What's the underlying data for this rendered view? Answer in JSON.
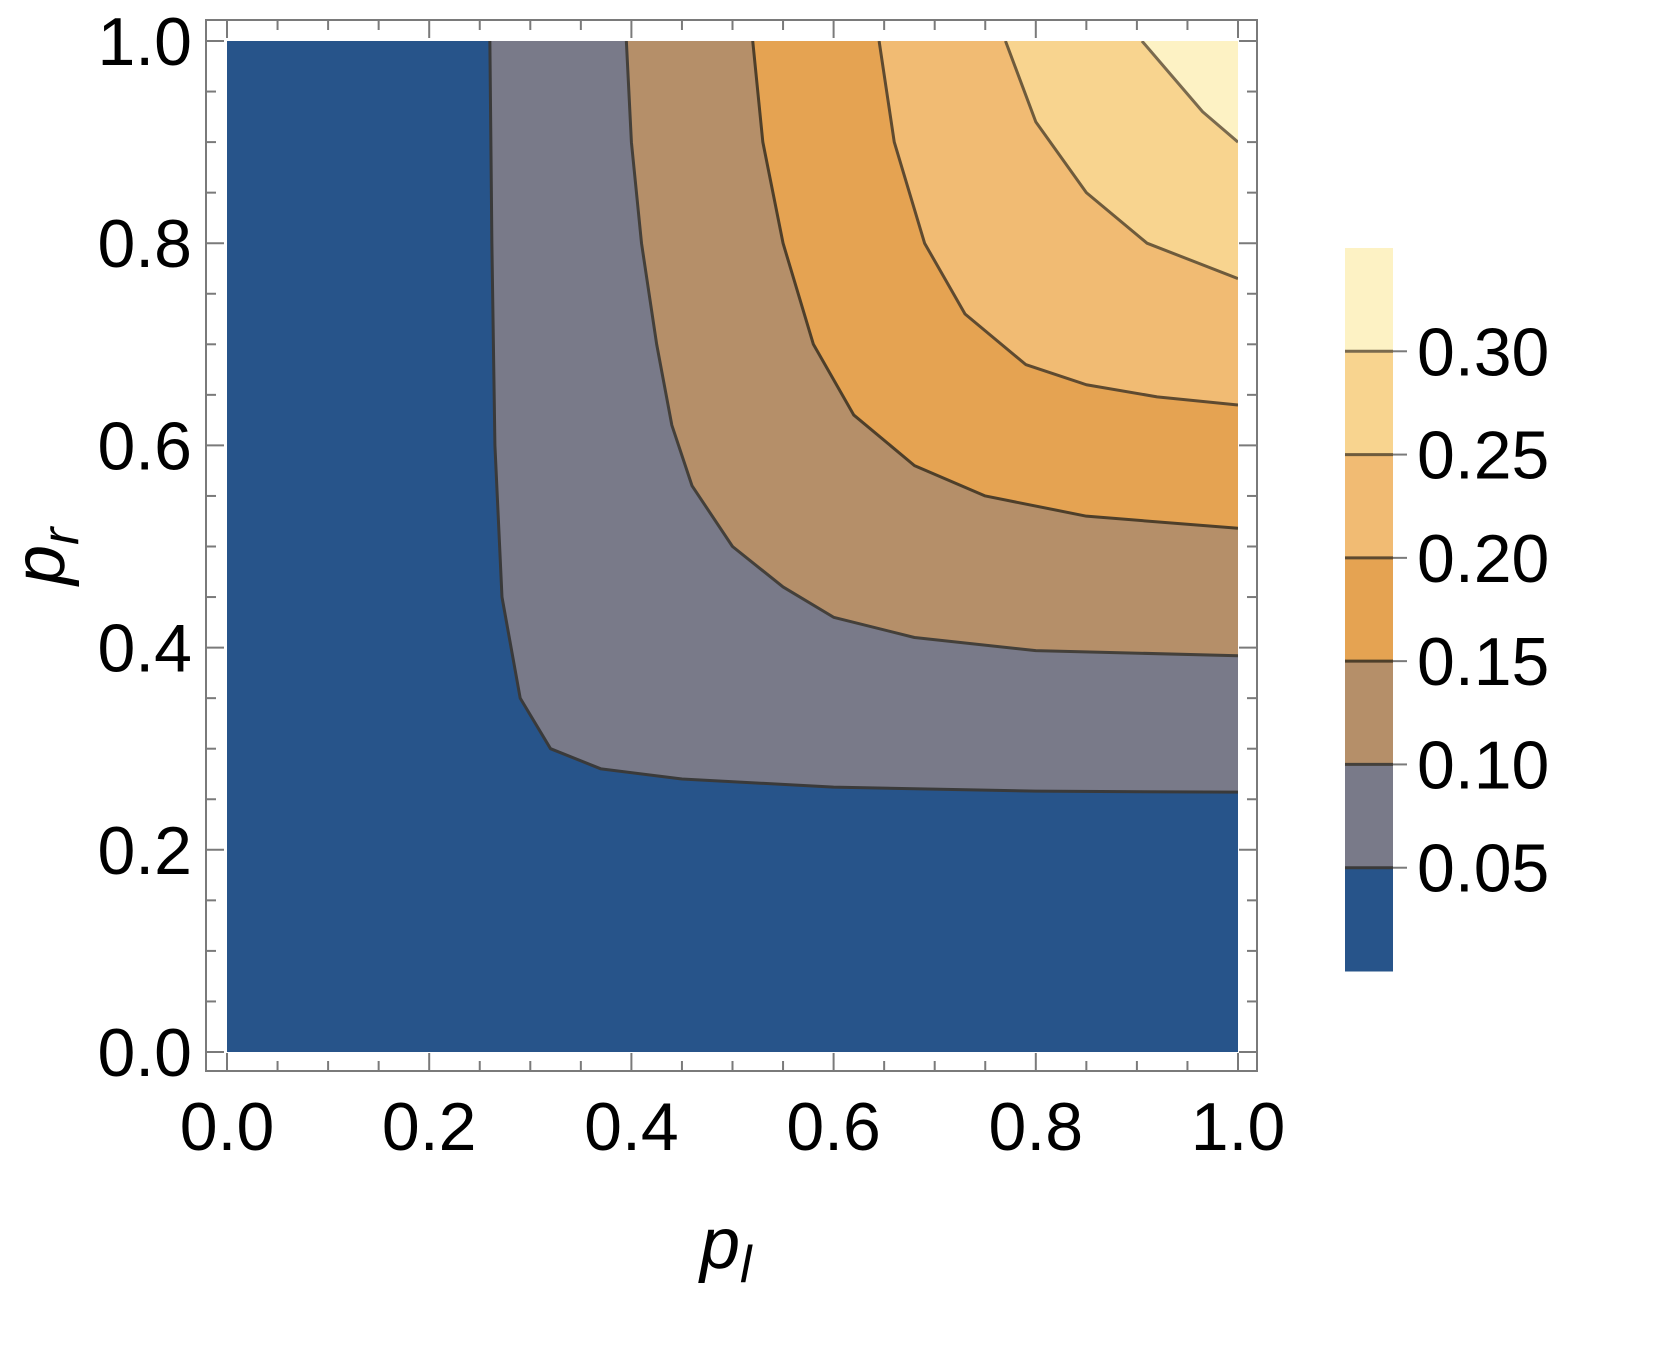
{
  "chart_data": {
    "type": "contour",
    "xlabel": {
      "base": "p",
      "sub": "l"
    },
    "ylabel": {
      "base": "p",
      "sub": "r"
    },
    "xlim": [
      0,
      1
    ],
    "ylim": [
      0,
      1
    ],
    "xticks": [
      "0.0",
      "0.2",
      "0.4",
      "0.6",
      "0.8",
      "1.0"
    ],
    "yticks": [
      "0.0",
      "0.2",
      "0.4",
      "0.6",
      "0.8",
      "1.0"
    ],
    "contour_levels": [
      {
        "level": 0.05,
        "label": "0.05",
        "line_color": "#3a3a3a"
      },
      {
        "level": 0.1,
        "label": "0.10",
        "line_color": "#44403a"
      },
      {
        "level": 0.15,
        "label": "0.15",
        "line_color": "#4e3f2a"
      },
      {
        "level": 0.2,
        "label": "0.20",
        "line_color": "#5e4a30"
      },
      {
        "level": 0.25,
        "label": "0.25",
        "line_color": "#6e5b3c"
      },
      {
        "level": 0.3,
        "label": "0.30",
        "line_color": "#7a6a4e"
      }
    ],
    "band_colors": [
      "#27548a",
      "#797a89",
      "#b58f69",
      "#e5a352",
      "#f1bb73",
      "#f8d48f",
      "#fdf2c4"
    ],
    "contour_lines": [
      {
        "level": 0.05,
        "points": [
          [
            0.26,
            1.0
          ],
          [
            0.262,
            0.8
          ],
          [
            0.265,
            0.6
          ],
          [
            0.272,
            0.45
          ],
          [
            0.29,
            0.35
          ],
          [
            0.32,
            0.3
          ],
          [
            0.37,
            0.28
          ],
          [
            0.45,
            0.27
          ],
          [
            0.6,
            0.262
          ],
          [
            0.8,
            0.258
          ],
          [
            1.0,
            0.257
          ]
        ]
      },
      {
        "level": 0.1,
        "points": [
          [
            0.395,
            1.0
          ],
          [
            0.4,
            0.9
          ],
          [
            0.41,
            0.8
          ],
          [
            0.425,
            0.7
          ],
          [
            0.44,
            0.62
          ],
          [
            0.46,
            0.56
          ],
          [
            0.5,
            0.5
          ],
          [
            0.55,
            0.46
          ],
          [
            0.6,
            0.43
          ],
          [
            0.68,
            0.41
          ],
          [
            0.8,
            0.397
          ],
          [
            1.0,
            0.392
          ]
        ]
      },
      {
        "level": 0.15,
        "points": [
          [
            0.52,
            1.0
          ],
          [
            0.53,
            0.9
          ],
          [
            0.55,
            0.8
          ],
          [
            0.58,
            0.7
          ],
          [
            0.62,
            0.63
          ],
          [
            0.68,
            0.58
          ],
          [
            0.75,
            0.55
          ],
          [
            0.85,
            0.53
          ],
          [
            1.0,
            0.518
          ]
        ]
      },
      {
        "level": 0.2,
        "points": [
          [
            0.645,
            1.0
          ],
          [
            0.66,
            0.9
          ],
          [
            0.69,
            0.8
          ],
          [
            0.73,
            0.73
          ],
          [
            0.79,
            0.68
          ],
          [
            0.85,
            0.66
          ],
          [
            0.92,
            0.648
          ],
          [
            1.0,
            0.64
          ]
        ]
      },
      {
        "level": 0.25,
        "points": [
          [
            0.77,
            1.0
          ],
          [
            0.8,
            0.92
          ],
          [
            0.85,
            0.85
          ],
          [
            0.91,
            0.8
          ],
          [
            1.0,
            0.765
          ]
        ]
      },
      {
        "level": 0.3,
        "points": [
          [
            0.905,
            1.0
          ],
          [
            0.935,
            0.965
          ],
          [
            0.965,
            0.93
          ],
          [
            1.0,
            0.9
          ]
        ]
      }
    ],
    "legend": {
      "placement": "right",
      "labels": [
        "0.30",
        "0.25",
        "0.20",
        "0.15",
        "0.10",
        "0.05"
      ]
    }
  }
}
